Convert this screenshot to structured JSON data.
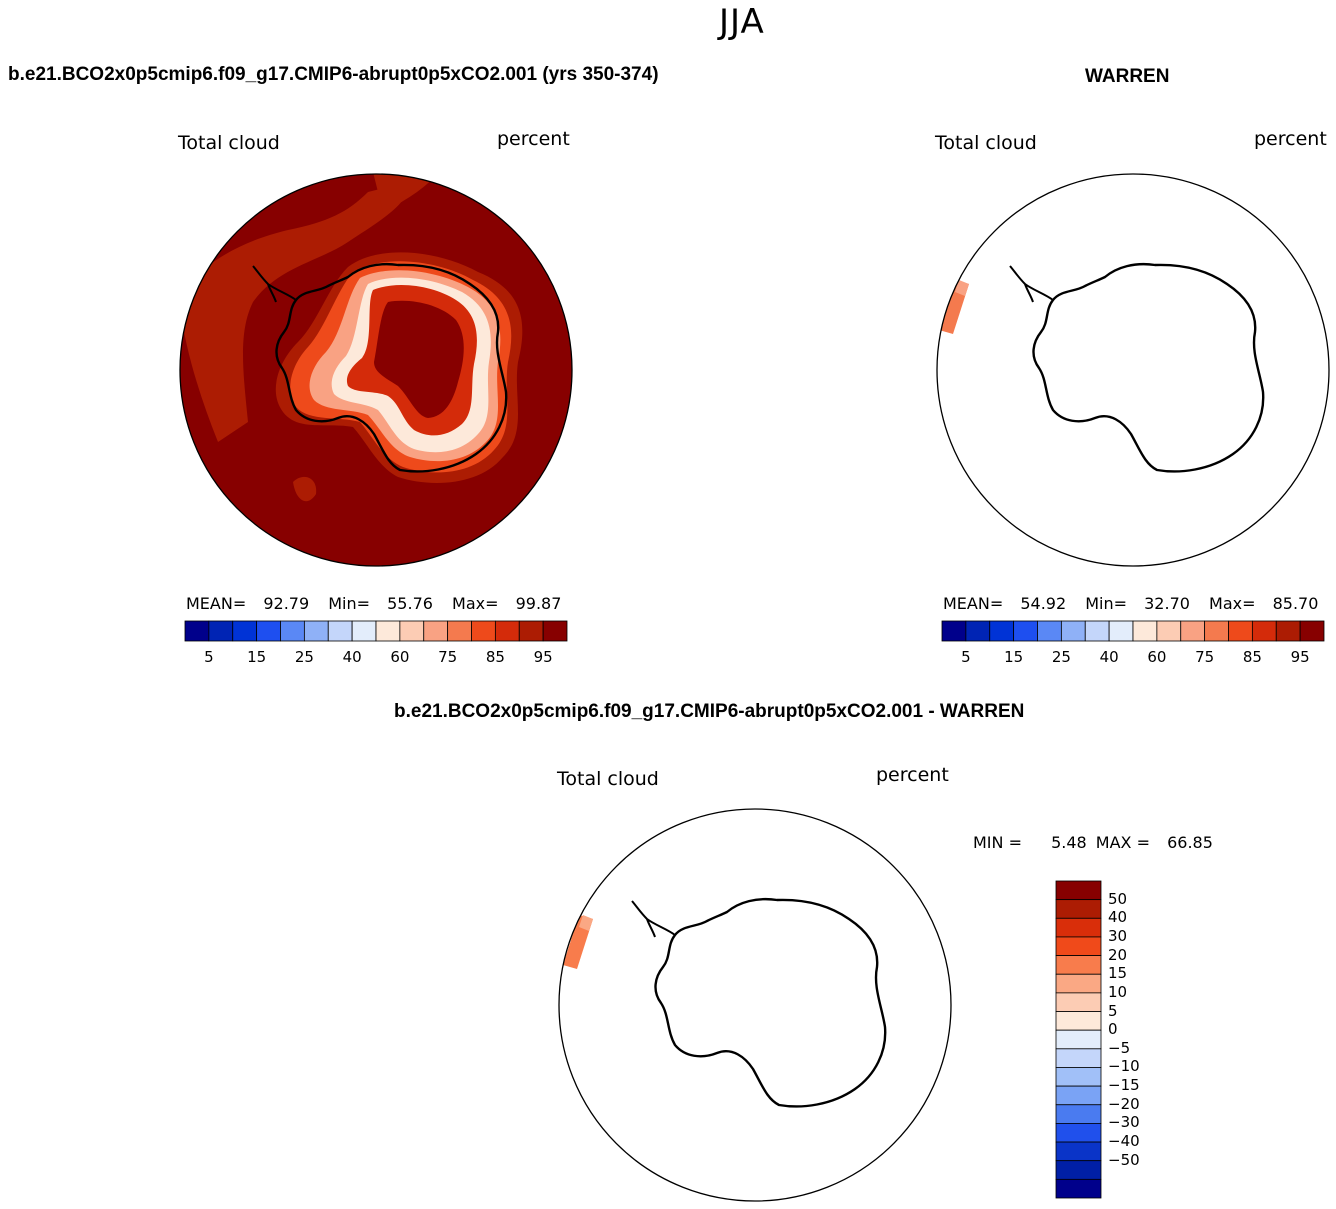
{
  "season": "JJA",
  "panels": {
    "left": {
      "title": "b.e21.BCO2x0p5cmip6.f09_g17.CMIP6-abrupt0p5xCO2.001 (yrs 350-374)",
      "variable": "Total cloud",
      "units": "percent",
      "stats": {
        "mean_label": "MEAN=",
        "mean": "92.79",
        "min_label": "Min=",
        "min": "55.76",
        "max_label": "Max=",
        "max": "99.87"
      }
    },
    "right": {
      "title": "WARREN",
      "variable": "Total cloud",
      "units": "percent",
      "stats": {
        "mean_label": "MEAN=",
        "mean": "54.92",
        "min_label": "Min=",
        "min": "32.70",
        "max_label": "Max=",
        "max": "85.70"
      }
    },
    "diff": {
      "title": "b.e21.BCO2x0p5cmip6.f09_g17.CMIP6-abrupt0p5xCO2.001 - WARREN",
      "variable": "Total cloud",
      "units": "percent",
      "stats": {
        "min_label": "MIN =",
        "min": "5.48",
        "max_label": "MAX =",
        "max": "66.85"
      }
    }
  },
  "colorbar_abs": {
    "colors": [
      "#00008b",
      "#0024b4",
      "#0033d6",
      "#1e4ff0",
      "#5a88f5",
      "#8fb1f7",
      "#c4d6fa",
      "#e3edfb",
      "#fde9da",
      "#fcccb4",
      "#f9a283",
      "#f47a4e",
      "#ee4a1b",
      "#d42b0a",
      "#ac1c03",
      "#870000"
    ],
    "ticks": [
      "5",
      "15",
      "25",
      "40",
      "60",
      "75",
      "85",
      "95"
    ]
  },
  "colorbar_diff": {
    "colors": [
      "#870000",
      "#ac1c03",
      "#d92e0a",
      "#f04a1a",
      "#f87c4c",
      "#faa884",
      "#fcccb4",
      "#fde9da",
      "#e3edfb",
      "#c4d6fa",
      "#a1c0f8",
      "#7aa3f5",
      "#4a7bf0",
      "#2050ec",
      "#0a34c8",
      "#001fa6",
      "#00008b"
    ],
    "ticks": [
      "50",
      "40",
      "30",
      "20",
      "15",
      "10",
      "5",
      "0",
      "−5",
      "−10",
      "−15",
      "−20",
      "−30",
      "−40",
      "−50"
    ]
  },
  "map_fills": {
    "ocean_high": "#870000",
    "ring_a": "#ac1c03",
    "ring_b": "#d42b0a",
    "ring_c": "#ee4a1b",
    "ring_d": "#f9a283",
    "ring_e": "#fcccb4",
    "ring_f": "#fde9da",
    "coast_line": "#000000"
  }
}
